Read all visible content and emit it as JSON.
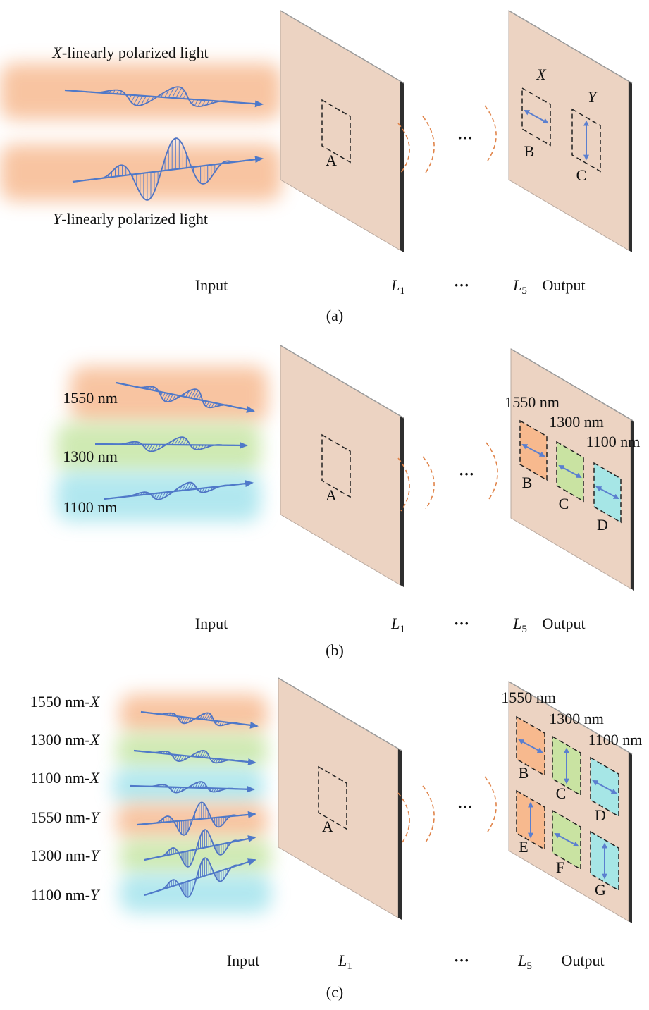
{
  "panels": [
    {
      "caption": "(a)",
      "input_labels": [
        {
          "parts": [
            {
              "text": "X",
              "italic": true
            },
            {
              "text": "-linearly polarized light"
            }
          ]
        },
        {
          "parts": [
            {
              "text": "Y",
              "italic": true
            },
            {
              "text": "-linearly polarized light"
            }
          ]
        }
      ],
      "entrance": "A",
      "between": "···",
      "outputs": [
        {
          "label": "B",
          "title": "X",
          "title_italic": true,
          "polarization": "X"
        },
        {
          "label": "C",
          "title": "Y",
          "title_italic": true,
          "polarization": "Y"
        }
      ],
      "axis_labels": {
        "input": "Input",
        "first_layer": {
          "symbol": "L",
          "index": "1"
        },
        "dots": "···",
        "last_layer": {
          "symbol": "L",
          "index": "5"
        },
        "output": "Output"
      }
    },
    {
      "caption": "(b)",
      "input_labels": [
        {
          "parts": [
            {
              "text": "1550 nm"
            }
          ]
        },
        {
          "parts": [
            {
              "text": "1300 nm"
            }
          ]
        },
        {
          "parts": [
            {
              "text": "1100 nm"
            }
          ]
        }
      ],
      "entrance": "A",
      "between": "···",
      "outputs": [
        {
          "label": "B",
          "title": "1550 nm",
          "polarization": "X",
          "color": "#f7b98e"
        },
        {
          "label": "C",
          "title": "1300 nm",
          "polarization": "X",
          "color": "#c9e3a2"
        },
        {
          "label": "D",
          "title": "1100 nm",
          "polarization": "X",
          "color": "#a6e6e6"
        }
      ],
      "axis_labels": {
        "input": "Input",
        "first_layer": {
          "symbol": "L",
          "index": "1"
        },
        "dots": "···",
        "last_layer": {
          "symbol": "L",
          "index": "5"
        },
        "output": "Output"
      }
    },
    {
      "caption": "(c)",
      "input_labels": [
        {
          "parts": [
            {
              "text": "1550 nm-"
            },
            {
              "text": "X",
              "italic": true
            }
          ]
        },
        {
          "parts": [
            {
              "text": "1300 nm-"
            },
            {
              "text": "X",
              "italic": true
            }
          ]
        },
        {
          "parts": [
            {
              "text": "1100 nm-"
            },
            {
              "text": "X",
              "italic": true
            }
          ]
        },
        {
          "parts": [
            {
              "text": "1550 nm-"
            },
            {
              "text": "Y",
              "italic": true
            }
          ]
        },
        {
          "parts": [
            {
              "text": "1300 nm-"
            },
            {
              "text": "Y",
              "italic": true
            }
          ]
        },
        {
          "parts": [
            {
              "text": "1100 nm-"
            },
            {
              "text": "Y",
              "italic": true
            }
          ]
        }
      ],
      "entrance": "A",
      "between": "···",
      "outputs": [
        {
          "label": "B",
          "title": "1550 nm",
          "polarization": "X",
          "color": "#f7b98e"
        },
        {
          "label": "C",
          "title": "1300 nm",
          "polarization": "Y",
          "color": "#c9e3a2"
        },
        {
          "label": "D",
          "title": "1100 nm",
          "polarization": "X",
          "color": "#a6e6e6"
        },
        {
          "label": "E",
          "polarization": "Y",
          "color": "#f7b98e"
        },
        {
          "label": "F",
          "polarization": "X",
          "color": "#c9e3a2"
        },
        {
          "label": "G",
          "polarization": "Y",
          "color": "#a6e6e6"
        }
      ],
      "axis_labels": {
        "input": "Input",
        "first_layer": {
          "symbol": "L",
          "index": "1"
        },
        "dots": "···",
        "last_layer": {
          "symbol": "L",
          "index": "5"
        },
        "output": "Output"
      }
    }
  ]
}
